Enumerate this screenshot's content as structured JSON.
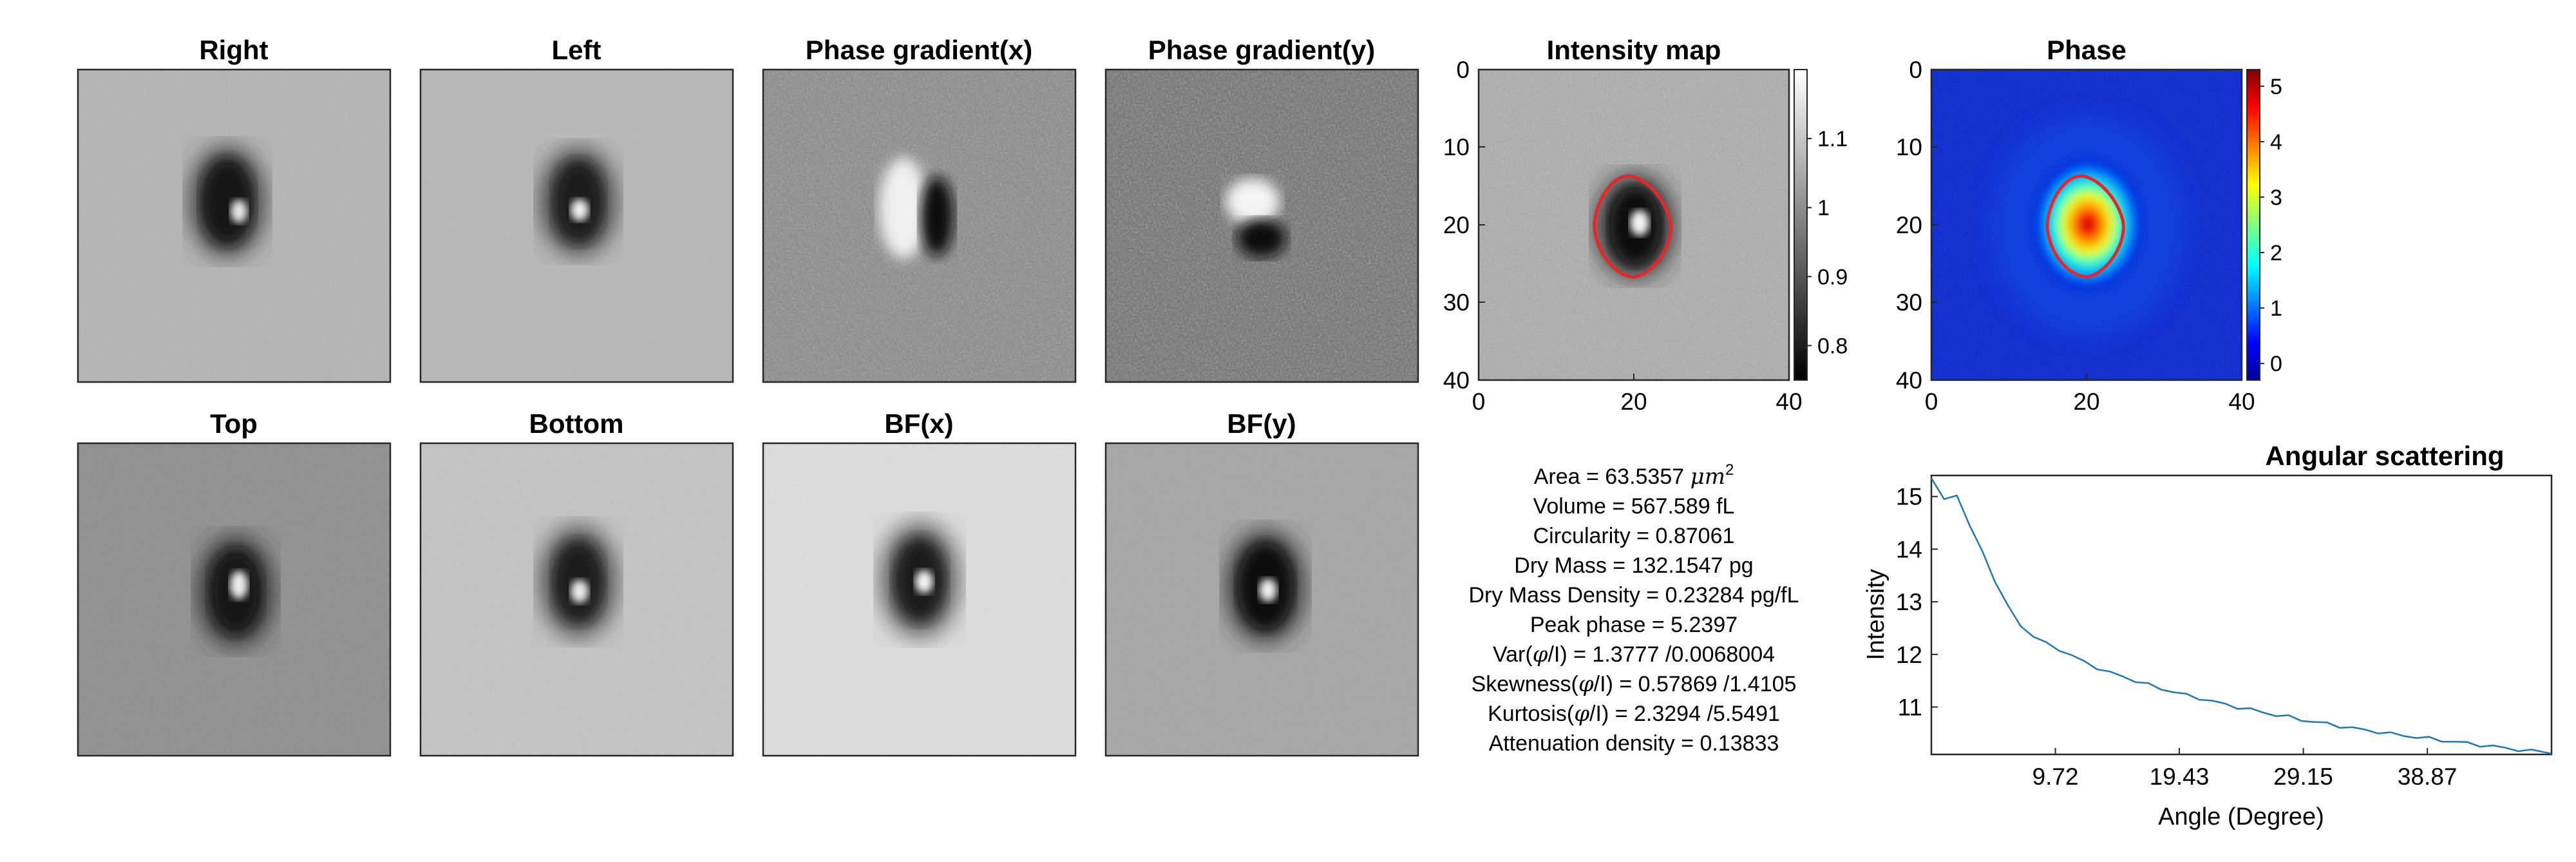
{
  "panels": [
    {
      "title": "Right"
    },
    {
      "title": "Left"
    },
    {
      "title": "Phase gradient(x)"
    },
    {
      "title": "Phase gradient(y)"
    },
    {
      "title": "Top"
    },
    {
      "title": "Bottom"
    },
    {
      "title": "BF(x)"
    },
    {
      "title": "BF(y)"
    }
  ],
  "intensity_map": {
    "title": "Intensity map",
    "x_ticks": [
      "0",
      "20",
      "40"
    ],
    "y_ticks": [
      "0",
      "10",
      "20",
      "30",
      "40"
    ],
    "colorbar_ticks": [
      "1.1",
      "1",
      "0.9",
      "0.8"
    ],
    "colorbar_range": [
      0.75,
      1.2
    ],
    "colormap": "gray",
    "contour_color": "#e8262a"
  },
  "phase_map": {
    "title": "Phase",
    "x_ticks": [
      "0",
      "20",
      "40"
    ],
    "y_ticks": [
      "0",
      "10",
      "20",
      "30",
      "40"
    ],
    "colorbar_ticks": [
      "5",
      "4",
      "3",
      "2",
      "1",
      "0"
    ],
    "colorbar_range": [
      -0.3,
      5.3
    ],
    "colormap": "jet",
    "contour_color": "#e8262a"
  },
  "stats": [
    {
      "prefix": "Area = 63.5357 ",
      "unit": "μm",
      "sup": "2"
    },
    {
      "prefix": "Volume = 567.589 fL"
    },
    {
      "prefix": "Circularity = 0.87061"
    },
    {
      "prefix": "Dry Mass = 132.1547 pg"
    },
    {
      "prefix": "Dry Mass Density = 0.23284 pg/fL"
    },
    {
      "prefix": "Peak phase = 5.2397"
    },
    {
      "prefix": "Var(",
      "phi": "φ",
      "suffix": "/I) = 1.3777 /0.0068004"
    },
    {
      "prefix": "Skewness(",
      "phi": "φ",
      "suffix": "/I) = 0.57869 /1.4105"
    },
    {
      "prefix": "Kurtosis(",
      "phi": "φ",
      "suffix": "/I) = 2.3294 /5.5491"
    },
    {
      "prefix": "Attenuation density = 0.13833"
    }
  ],
  "chart_data": {
    "type": "line",
    "title": "Angular scattering",
    "xlabel": "Angle (Degree)",
    "ylabel": "Intensity",
    "x_ticks": [
      9.72,
      19.43,
      29.15,
      38.87
    ],
    "x_tick_labels": [
      "9.72",
      "19.43",
      "29.15",
      "38.87"
    ],
    "y_ticks": [
      11,
      12,
      13,
      14,
      15
    ],
    "y_tick_labels": [
      "11",
      "12",
      "13",
      "14",
      "15"
    ],
    "xlim": [
      0,
      48.6
    ],
    "ylim": [
      10.1,
      15.4
    ],
    "grid": false,
    "line_color": "#1f77b4",
    "series": [
      {
        "x": [
          0,
          1,
          2,
          3,
          4,
          5,
          6,
          7,
          8,
          9,
          10,
          11,
          12,
          13,
          14,
          15,
          16,
          17,
          18,
          19,
          20,
          21,
          22,
          23,
          24,
          25,
          26,
          27,
          28,
          29,
          30,
          31,
          32,
          33,
          34,
          35,
          36,
          37,
          38,
          39,
          40,
          41,
          42,
          43,
          44,
          45,
          46,
          47,
          48.6
        ],
        "y": [
          15.35,
          14.95,
          15.02,
          14.45,
          13.95,
          13.4,
          12.9,
          12.55,
          12.35,
          12.2,
          12.1,
          11.98,
          11.85,
          11.75,
          11.65,
          11.58,
          11.5,
          11.42,
          11.35,
          11.29,
          11.22,
          11.17,
          11.11,
          11.05,
          11.0,
          10.95,
          10.9,
          10.85,
          10.81,
          10.76,
          10.72,
          10.68,
          10.64,
          10.6,
          10.56,
          10.53,
          10.49,
          10.46,
          10.43,
          10.4,
          10.37,
          10.34,
          10.31,
          10.28,
          10.25,
          10.22,
          10.19,
          10.16,
          10.13
        ]
      }
    ]
  }
}
